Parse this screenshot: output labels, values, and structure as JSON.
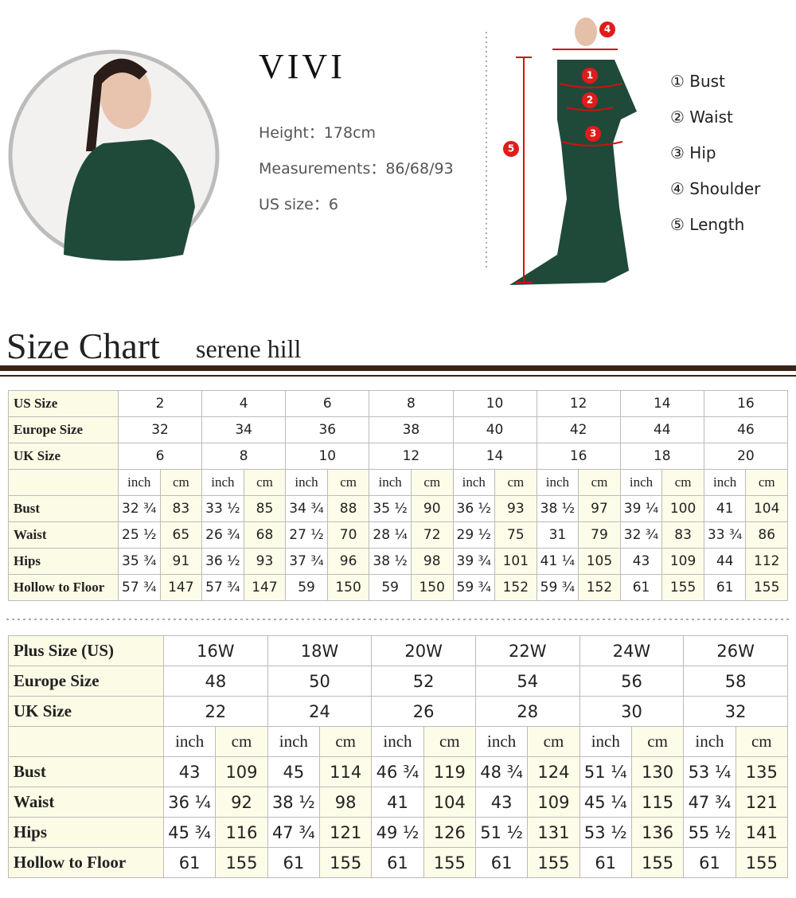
{
  "model": {
    "name": "VIVI",
    "height": "Height：178cm",
    "measurements": "Measurements：86/68/93",
    "us_size": "US size：6"
  },
  "diagram_markers": [
    "1",
    "2",
    "3",
    "4",
    "5"
  ],
  "measure_legend": [
    "① Bust",
    "② Waist",
    "③ Hip",
    "④ Shoulder",
    "⑤ Length"
  ],
  "heading": {
    "title": "Size Chart",
    "subtitle": "serene hill"
  },
  "units": [
    "inch",
    "cm"
  ],
  "table1": {
    "size_rows": [
      {
        "label": "US Size",
        "values": [
          "2",
          "4",
          "6",
          "8",
          "10",
          "12",
          "14",
          "16"
        ]
      },
      {
        "label": "Europe Size",
        "values": [
          "32",
          "34",
          "36",
          "38",
          "40",
          "42",
          "44",
          "46"
        ]
      },
      {
        "label": "UK Size",
        "values": [
          "6",
          "8",
          "10",
          "12",
          "14",
          "16",
          "18",
          "20"
        ]
      }
    ],
    "measure_rows": [
      {
        "label": "Bust",
        "values": [
          "32 ¾",
          "83",
          "33 ½",
          "85",
          "34 ¾",
          "88",
          "35 ½",
          "90",
          "36 ½",
          "93",
          "38 ½",
          "97",
          "39 ¼",
          "100",
          "41",
          "104"
        ]
      },
      {
        "label": "Waist",
        "values": [
          "25 ½",
          "65",
          "26 ¾",
          "68",
          "27 ½",
          "70",
          "28 ¼",
          "72",
          "29 ½",
          "75",
          "31",
          "79",
          "32 ¾",
          "83",
          "33 ¾",
          "86"
        ]
      },
      {
        "label": "Hips",
        "values": [
          "35 ¾",
          "91",
          "36 ½",
          "93",
          "37 ¾",
          "96",
          "38 ½",
          "98",
          "39 ¾",
          "101",
          "41 ¼",
          "105",
          "43",
          "109",
          "44",
          "112"
        ]
      },
      {
        "label": "Hollow to Floor",
        "values": [
          "57 ¾",
          "147",
          "57 ¾",
          "147",
          "59",
          "150",
          "59",
          "150",
          "59 ¾",
          "152",
          "59 ¾",
          "152",
          "61",
          "155",
          "61",
          "155"
        ]
      }
    ]
  },
  "table2": {
    "size_rows": [
      {
        "label": "Plus Size (US)",
        "values": [
          "16W",
          "18W",
          "20W",
          "22W",
          "24W",
          "26W"
        ]
      },
      {
        "label": "Europe Size",
        "values": [
          "48",
          "50",
          "52",
          "54",
          "56",
          "58"
        ]
      },
      {
        "label": "UK Size",
        "values": [
          "22",
          "24",
          "26",
          "28",
          "30",
          "32"
        ]
      }
    ],
    "measure_rows": [
      {
        "label": "Bust",
        "values": [
          "43",
          "109",
          "45",
          "114",
          "46 ¾",
          "119",
          "48 ¾",
          "124",
          "51 ¼",
          "130",
          "53 ¼",
          "135"
        ]
      },
      {
        "label": "Waist",
        "values": [
          "36 ¼",
          "92",
          "38 ½",
          "98",
          "41",
          "104",
          "43",
          "109",
          "45 ¼",
          "115",
          "47 ¾",
          "121"
        ]
      },
      {
        "label": "Hips",
        "values": [
          "45 ¾",
          "116",
          "47 ¾",
          "121",
          "49 ½",
          "126",
          "51 ½",
          "131",
          "53 ½",
          "136",
          "55 ½",
          "141"
        ]
      },
      {
        "label": "Hollow to Floor",
        "values": [
          "61",
          "155",
          "61",
          "155",
          "61",
          "155",
          "61",
          "155",
          "61",
          "155",
          "61",
          "155"
        ]
      }
    ]
  }
}
